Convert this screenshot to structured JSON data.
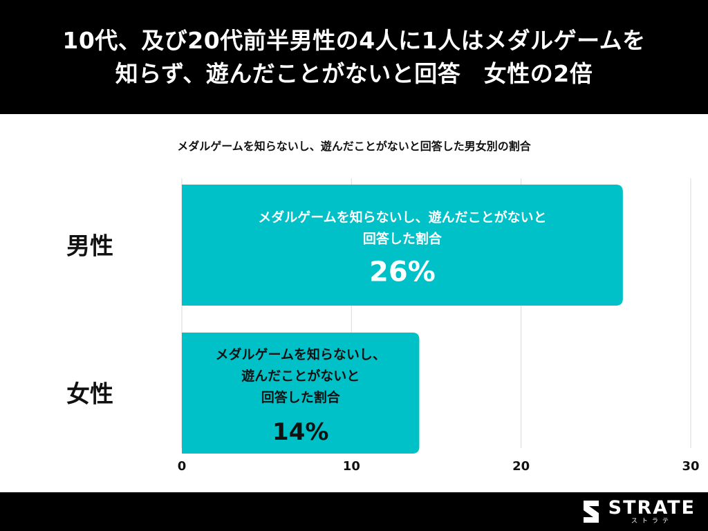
{
  "header": {
    "title_line1": "10代、及び20代前半男性の4人に1人はメダルゲームを",
    "title_line2": "知らず、遊んだことがないと回答　女性の2倍"
  },
  "chart_data": {
    "type": "bar",
    "orientation": "horizontal",
    "subtitle": "メダルゲームを知らないし、遊んだことがないと回答した男女別の割合",
    "categories": [
      "男性",
      "女性"
    ],
    "values": [
      26,
      14
    ],
    "bar_labels": [
      {
        "lines": [
          "メダルゲームを知らないし、遊んだことがないと",
          "回答した割合"
        ],
        "value_text": "26%"
      },
      {
        "lines": [
          "メダルゲームを知らないし、",
          "遊んだことがないと",
          "回答した割合"
        ],
        "value_text": "14%"
      }
    ],
    "xlim": [
      0,
      30
    ],
    "xticks": [
      0,
      10,
      20,
      30
    ],
    "grid": true,
    "bar_color": "#00C0C8"
  },
  "footer": {
    "logo_text": "STRATE",
    "logo_sub": "ストラテ"
  },
  "colors": {
    "header_bg": "#000000",
    "bar": "#00C0C8",
    "grid": "#d9d9d9"
  }
}
